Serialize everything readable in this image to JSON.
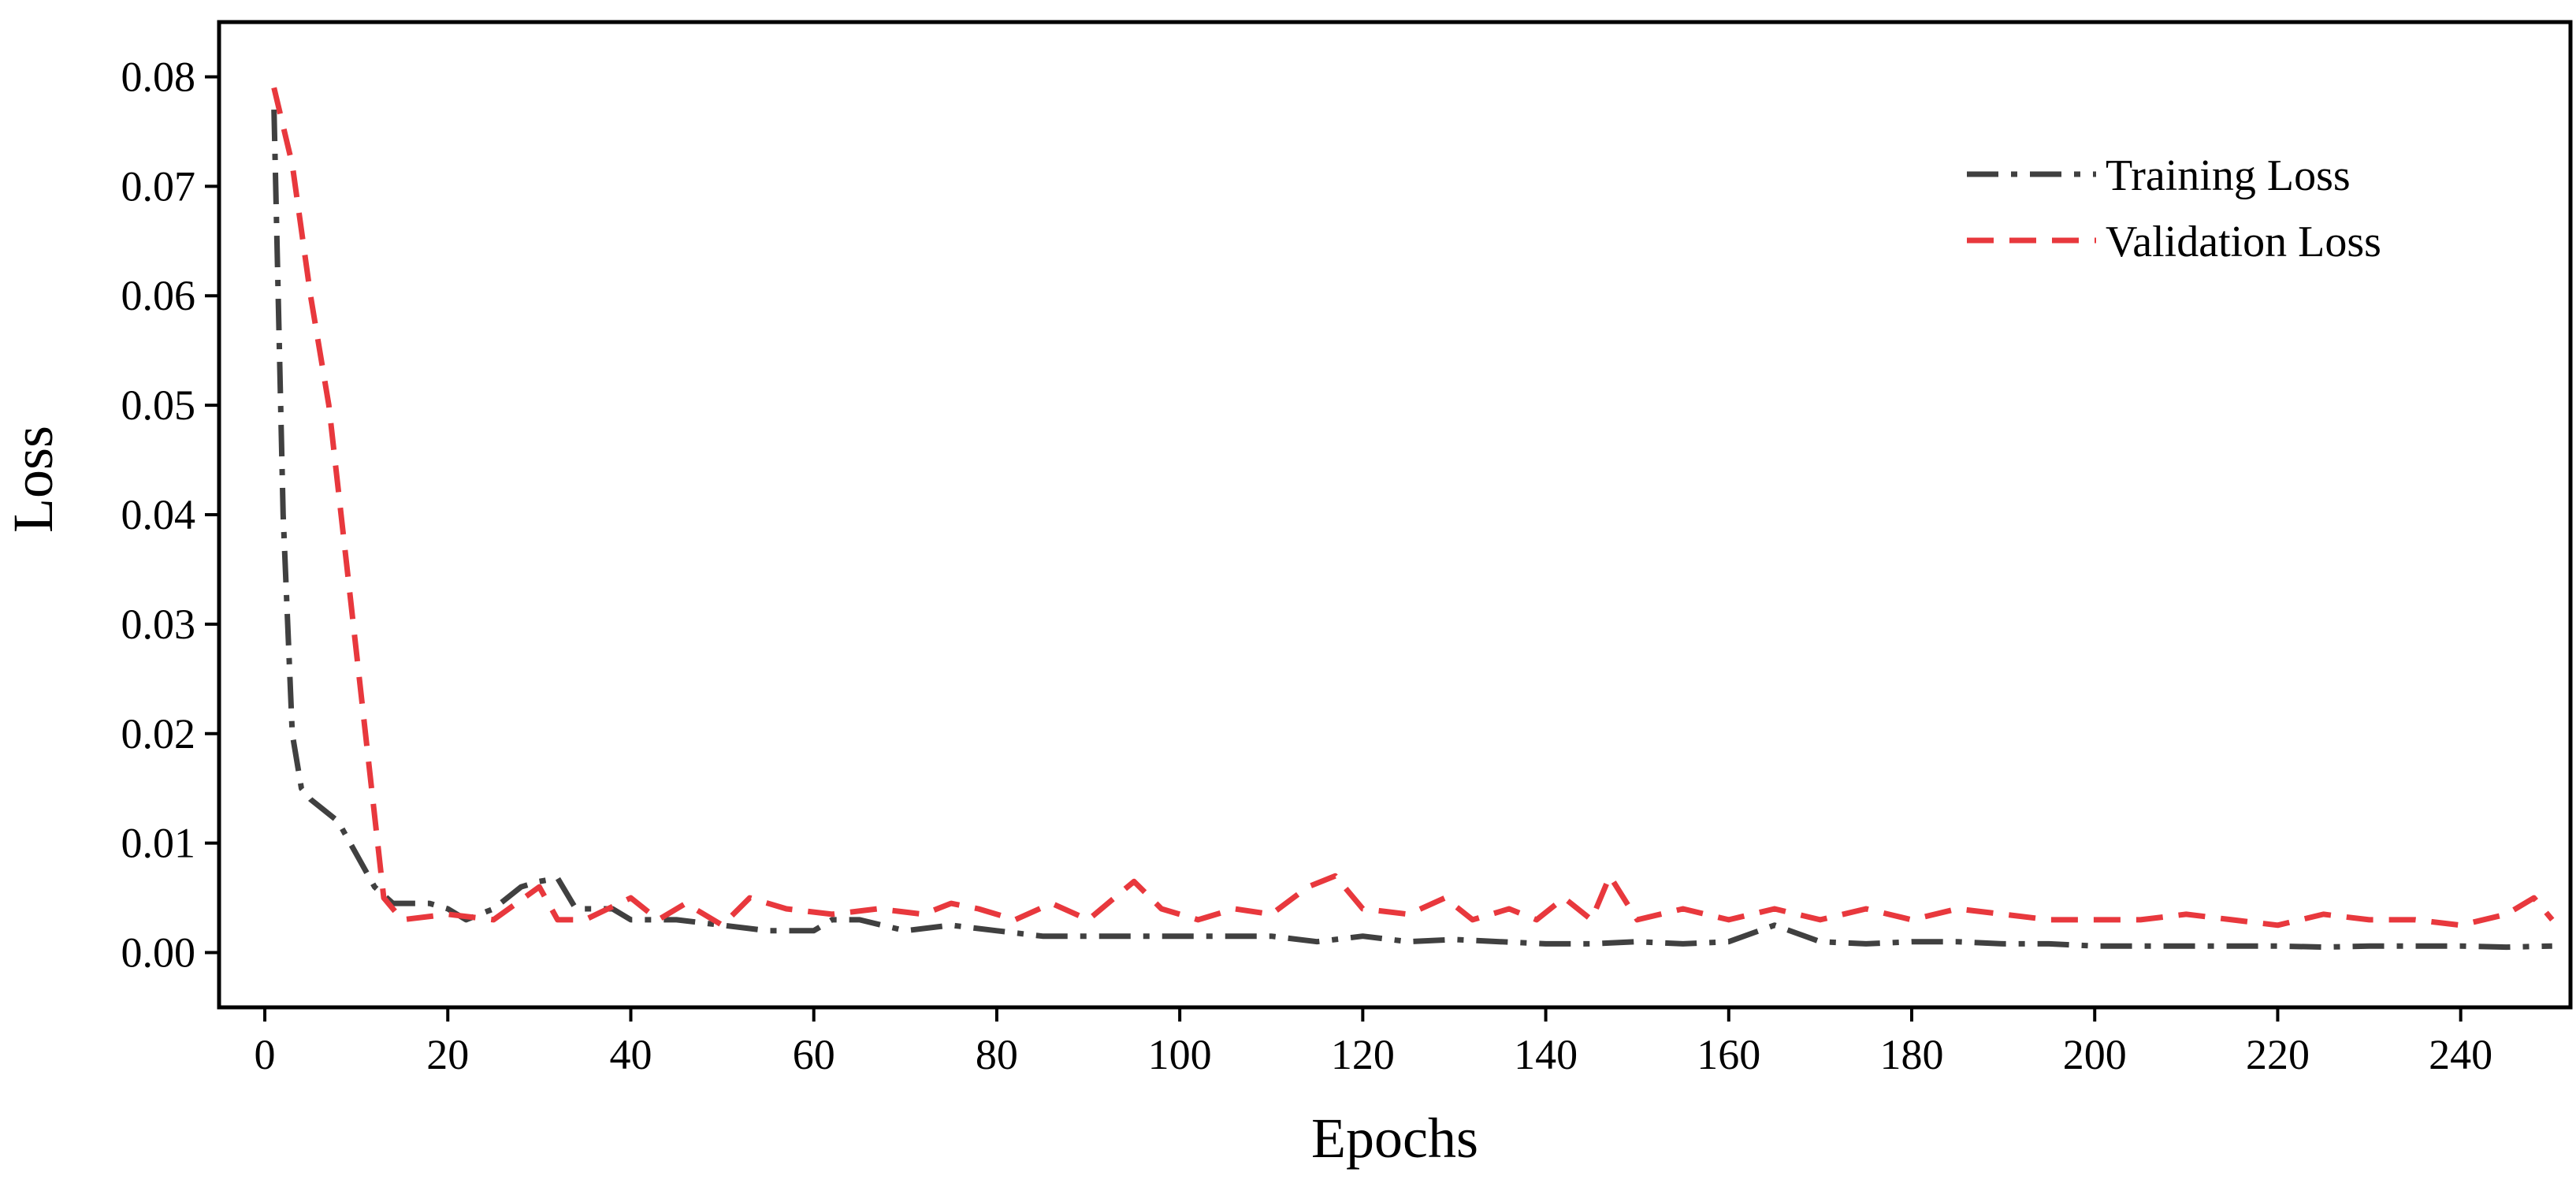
{
  "chart_data": {
    "type": "line",
    "title": "",
    "xlabel": "Epochs",
    "ylabel": "Loss",
    "xlim": [
      -5,
      252
    ],
    "ylim": [
      -0.005,
      0.085
    ],
    "xticks": [
      0,
      20,
      40,
      60,
      80,
      100,
      120,
      140,
      160,
      180,
      200,
      220,
      240
    ],
    "yticks": [
      0.0,
      0.01,
      0.02,
      0.03,
      0.04,
      0.05,
      0.06,
      0.07,
      0.08
    ],
    "xtick_labels": [
      "0",
      "20",
      "40",
      "60",
      "80",
      "100",
      "120",
      "140",
      "160",
      "180",
      "200",
      "220",
      "240"
    ],
    "ytick_labels": [
      "0.00",
      "0.01",
      "0.02",
      "0.03",
      "0.04",
      "0.05",
      "0.06",
      "0.07",
      "0.08"
    ],
    "grid": false,
    "legend_position": "top-right",
    "series": [
      {
        "name": "Training Loss",
        "color": "#404040",
        "dash": "dash-dot",
        "x": [
          1,
          2,
          3,
          4,
          5,
          8,
          10,
          12,
          14,
          16,
          18,
          20,
          22,
          25,
          28,
          30,
          32,
          34,
          36,
          38,
          40,
          45,
          50,
          55,
          60,
          62,
          65,
          70,
          75,
          80,
          85,
          90,
          95,
          100,
          105,
          110,
          115,
          120,
          125,
          130,
          135,
          140,
          145,
          150,
          155,
          160,
          165,
          170,
          175,
          180,
          185,
          190,
          195,
          200,
          205,
          210,
          215,
          220,
          225,
          230,
          235,
          240,
          245,
          250
        ],
        "y": [
          0.077,
          0.04,
          0.02,
          0.015,
          0.014,
          0.012,
          0.009,
          0.006,
          0.0045,
          0.0045,
          0.0045,
          0.004,
          0.003,
          0.004,
          0.006,
          0.0065,
          0.0068,
          0.004,
          0.004,
          0.004,
          0.003,
          0.003,
          0.0025,
          0.002,
          0.002,
          0.003,
          0.003,
          0.002,
          0.0025,
          0.002,
          0.0015,
          0.0015,
          0.0015,
          0.0015,
          0.0015,
          0.0015,
          0.001,
          0.0015,
          0.001,
          0.0012,
          0.001,
          0.0008,
          0.0008,
          0.001,
          0.0008,
          0.001,
          0.0025,
          0.001,
          0.0008,
          0.001,
          0.001,
          0.0008,
          0.0008,
          0.0006,
          0.0006,
          0.0006,
          0.0006,
          0.0006,
          0.0005,
          0.0006,
          0.0006,
          0.0006,
          0.0005,
          0.0006
        ]
      },
      {
        "name": "Validation Loss",
        "color": "#e8383d",
        "dash": "dashed",
        "x": [
          1,
          3,
          5,
          7,
          9,
          11,
          13,
          15,
          20,
          25,
          30,
          32,
          35,
          40,
          43,
          46,
          50,
          53,
          57,
          62,
          67,
          72,
          75,
          78,
          82,
          86,
          90,
          95,
          98,
          102,
          106,
          110,
          114,
          117,
          120,
          125,
          129,
          132,
          136,
          139,
          142,
          145,
          147,
          150,
          155,
          160,
          165,
          170,
          175,
          180,
          185,
          190,
          195,
          200,
          205,
          210,
          215,
          220,
          225,
          230,
          235,
          240,
          245,
          248,
          250
        ],
        "y": [
          0.079,
          0.072,
          0.06,
          0.05,
          0.035,
          0.02,
          0.005,
          0.003,
          0.0035,
          0.003,
          0.006,
          0.003,
          0.003,
          0.005,
          0.003,
          0.0045,
          0.0025,
          0.005,
          0.004,
          0.0035,
          0.004,
          0.0035,
          0.0045,
          0.004,
          0.003,
          0.0045,
          0.003,
          0.0065,
          0.004,
          0.003,
          0.004,
          0.0035,
          0.006,
          0.007,
          0.004,
          0.0035,
          0.005,
          0.003,
          0.004,
          0.003,
          0.005,
          0.003,
          0.007,
          0.003,
          0.004,
          0.003,
          0.004,
          0.003,
          0.004,
          0.003,
          0.004,
          0.0035,
          0.003,
          0.003,
          0.003,
          0.0035,
          0.003,
          0.0025,
          0.0035,
          0.003,
          0.003,
          0.0025,
          0.0035,
          0.005,
          0.003
        ]
      }
    ]
  }
}
